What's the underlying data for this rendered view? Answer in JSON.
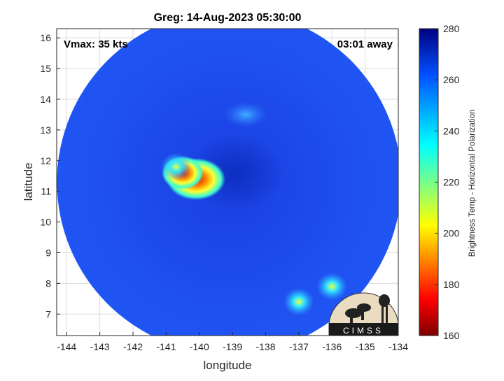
{
  "chart_data": {
    "type": "heatmap",
    "title": "Greg: 14-Aug-2023 05:30:00",
    "xlabel": "longitude",
    "ylabel": "latitude",
    "xlim": [
      -144.3,
      -134
    ],
    "ylim": [
      6.3,
      16.3
    ],
    "x_ticks": [
      -144,
      -143,
      -142,
      -141,
      -140,
      -139,
      -138,
      -137,
      -136,
      -135,
      -134
    ],
    "y_ticks": [
      7,
      8,
      9,
      10,
      11,
      12,
      13,
      14,
      15,
      16
    ],
    "grid": true,
    "annotations": {
      "vmax": "Vmax: 35 kts",
      "away": "03:01 away"
    },
    "colorbar": {
      "label": "Brightness Temp - Horizontal Polarization",
      "ticks": [
        160,
        180,
        200,
        220,
        240,
        260,
        280
      ],
      "range": [
        160,
        280
      ],
      "colormap": "jet"
    },
    "swath_center": {
      "lon": -139.1,
      "lat": 11.3
    },
    "features": [
      {
        "lon": -140.1,
        "lat": 11.4,
        "value": 175
      },
      {
        "lon": -140.5,
        "lat": 11.6,
        "value": 200
      },
      {
        "lon": -140.7,
        "lat": 11.8,
        "value": 225
      },
      {
        "lon": -137.0,
        "lat": 7.4,
        "value": 215
      },
      {
        "lon": -136.0,
        "lat": 7.9,
        "value": 230
      },
      {
        "lon": -138.6,
        "lat": 13.5,
        "value": 240
      }
    ],
    "logo": "CIMSS"
  }
}
